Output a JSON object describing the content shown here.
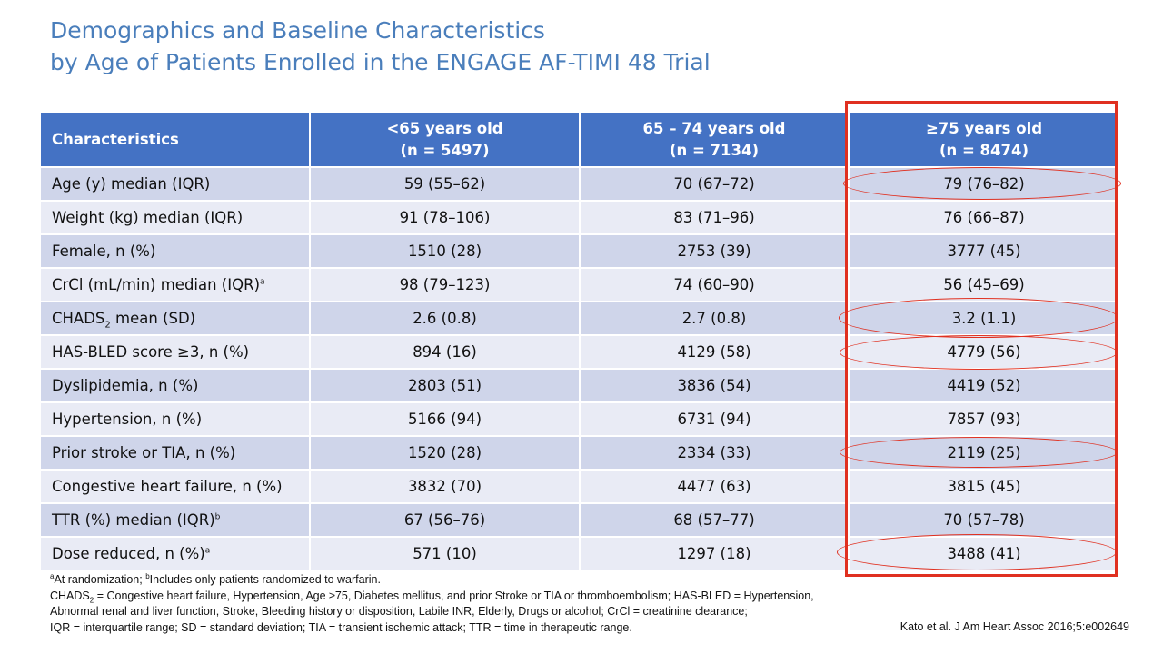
{
  "title": {
    "line1": "Demographics and Baseline Characteristics",
    "line2": "by Age of Patients Enrolled in the ENGAGE AF-TIMI 48 Trial"
  },
  "table": {
    "header": {
      "characteristics": "Characteristics",
      "group1": {
        "label": "<65 years old",
        "n": "(n = 5497)"
      },
      "group2": {
        "label": "65 – 74 years old",
        "n": "(n = 7134)"
      },
      "group3": {
        "label": "≥75 years old",
        "n": "(n = 8474)"
      }
    },
    "rows": [
      {
        "label": "Age (y) median (IQR)",
        "values": [
          "59 (55–62)",
          "70 (67–72)",
          "79 (76–82)"
        ]
      },
      {
        "label": "Weight (kg) median (IQR)",
        "values": [
          "91 (78–106)",
          "83 (71–96)",
          "76 (66–87)"
        ]
      },
      {
        "label": "Female, n (%)",
        "values": [
          "1510 (28)",
          "2753 (39)",
          "3777 (45)"
        ]
      },
      {
        "label": "CrCl (mL/min) median (IQR)",
        "sup": "a",
        "values": [
          "98 (79–123)",
          "74 (60–90)",
          "56 (45–69)"
        ]
      },
      {
        "label": "CHADS",
        "sub": "2",
        "label_rest": " mean (SD)",
        "values": [
          "2.6 (0.8)",
          "2.7 (0.8)",
          "3.2 (1.1)"
        ]
      },
      {
        "label": "HAS-BLED score ≥3, n (%)",
        "values": [
          "894 (16)",
          "4129 (58)",
          "4779 (56)"
        ]
      },
      {
        "label": "Dyslipidemia, n (%)",
        "values": [
          "2803 (51)",
          "3836 (54)",
          "4419 (52)"
        ]
      },
      {
        "label": "Hypertension, n (%)",
        "values": [
          "5166 (94)",
          "6731 (94)",
          "7857 (93)"
        ]
      },
      {
        "label": "Prior stroke or TIA, n (%)",
        "values": [
          "1520 (28)",
          "2334 (33)",
          "2119 (25)"
        ]
      },
      {
        "label": "Congestive heart failure, n (%)",
        "values": [
          "3832 (70)",
          "4477 (63)",
          "3815 (45)"
        ]
      },
      {
        "label": "TTR (%) median (IQR)",
        "sup": "b",
        "values": [
          "67 (56–76)",
          "68 (57–77)",
          "70 (57–78)"
        ]
      },
      {
        "label": "Dose reduced, n (%)",
        "sup": "a",
        "values": [
          "571 (10)",
          "1297 (18)",
          "3488 (41)"
        ]
      }
    ]
  },
  "footnotes": {
    "line1": {
      "a_mark": "a",
      "a_text": "At randomization; ",
      "b_mark": "b",
      "b_text": "Includes only patients randomized to warfarin."
    },
    "line2": {
      "chads": "CHADS",
      "chads_sub": "2",
      "text": " = Congestive heart failure, Hypertension, Age ≥75, Diabetes mellitus, and prior Stroke or TIA or thromboembolism; HAS-BLED = Hypertension,"
    },
    "line3": "Abnormal renal and liver function, Stroke, Bleeding history or disposition, Labile INR, Elderly, Drugs or alcohol; CrCl = creatinine clearance;",
    "line4": "IQR = interquartile range; SD = standard deviation; TIA = transient ischemic attack; TTR = time in therapeutic range."
  },
  "citation": "Kato et al. J Am Heart Assoc 2016;5:e002649",
  "colors": {
    "title": "#4a7ebb",
    "header_bg": "#4472c4",
    "row_dark": "#cfd5ea",
    "row_light": "#e9ebf5",
    "highlight": "#e03020"
  }
}
